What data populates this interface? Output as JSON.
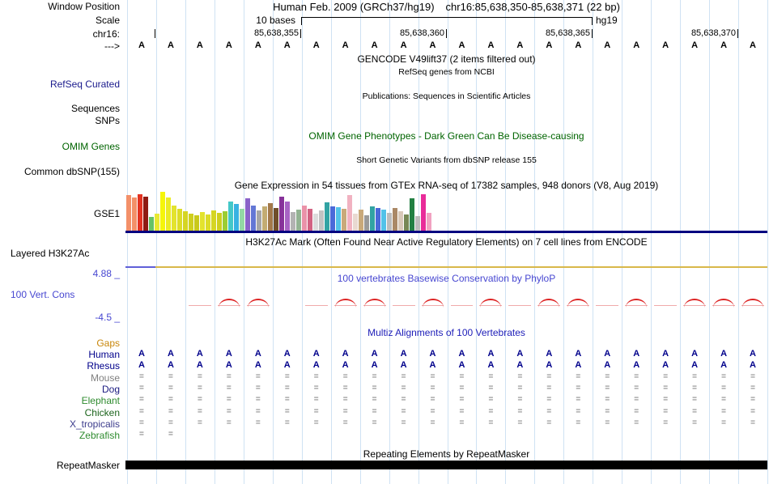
{
  "window": {
    "title_assembly": "Human Feb. 2009 (GRCh37/hg19)",
    "title_position": "chr16:85,638,350-85,638,371 (22 bp)"
  },
  "labels": {
    "window_position": "Window Position",
    "scale": "Scale",
    "chrom": "chr16:",
    "strand": "--->",
    "refseq_curated": "RefSeq Curated",
    "sequences": "Sequences",
    "snps": "SNPs",
    "omim_genes": "OMIM Genes",
    "common_dbsnp": "Common dbSNP(155)",
    "gtex_gene": "GSE1",
    "layered_h3k27ac": "Layered H3K27Ac",
    "cons_max": "4.88 _",
    "cons_track": "100 Vert. Cons",
    "cons_min": "-4.5 _",
    "gaps": "Gaps",
    "repeatmasker": "RepeatMasker"
  },
  "scale": {
    "value": "10 bases",
    "genome": "hg19"
  },
  "ruler": {
    "ticks": [
      "85,638,355",
      "85,638,360",
      "85,638,365",
      "85,638,370"
    ]
  },
  "titles": {
    "gencode": "GENCODE V49lift37 (2 items filtered out)",
    "refseq_sub": "RefSeq genes from NCBI",
    "publications": "Publications: Sequences in Scientific Articles",
    "omim": "OMIM Gene Phenotypes - Dark Green Can Be Disease-causing",
    "dbsnp": "Short Genetic Variants from dbSNP release 155",
    "gtex": "Gene Expression in 54 tissues from GTEx RNA-seq of 17382 samples, 948 donors (V8, Aug 2019)",
    "h3k27ac": "H3K27Ac Mark (Often Found Near Active Regulatory Elements) on 7 cell lines from ENCODE",
    "phylop": "100 vertebrates Basewise Conservation by PhyloP",
    "multiz": "Multiz Alignments of 100 Vertebrates",
    "repeatmasker": "Repeating Elements by RepeatMasker"
  },
  "sequence": "AAAAAAAAAAAAAAAAAAAAAA",
  "alignment": {
    "gap_color": "#909090",
    "base_color": "#00008b",
    "species": [
      {
        "name": "Human",
        "color": "#00008b",
        "row": "AAAAAAAAAAAAAAAAAAAAAA"
      },
      {
        "name": "Rhesus",
        "color": "#00008b",
        "row": "AAAAAAAAAAAAAAAAAAAAAA"
      },
      {
        "name": "Mouse",
        "color": "#808080",
        "row": "======================"
      },
      {
        "name": "Dog",
        "color": "#1a1a80",
        "row": "======================"
      },
      {
        "name": "Elephant",
        "color": "#2e8b2e",
        "row": "======================"
      },
      {
        "name": "Chicken",
        "color": "#1c641c",
        "row": "======================"
      },
      {
        "name": "X_tropicalis",
        "color": "#3c3c8c",
        "row": "======================"
      },
      {
        "name": "Zebrafish",
        "color": "#2e8b2e",
        "row": "=="
      }
    ]
  },
  "conservation": {
    "marks": [
      "none",
      "none",
      "dash",
      "arc",
      "arc",
      "none",
      "dash",
      "arc",
      "arc",
      "dash",
      "arc",
      "dash",
      "arc",
      "dash",
      "arc",
      "arc",
      "dash",
      "arc",
      "dash",
      "arc",
      "arc",
      "arc"
    ],
    "arc_color": "#dd2222",
    "dash_color": "#f0aaaa"
  },
  "chart_data": {
    "type": "bar",
    "title": "Gene Expression in 54 tissues from GTEx RNA-seq of 17382 samples, 948 donors (V8, Aug 2019)",
    "gene": "GSE1",
    "values": [
      44,
      41,
      45,
      42,
      17,
      21,
      48,
      41,
      31,
      27,
      24,
      21,
      19,
      23,
      20,
      25,
      22,
      24,
      36,
      33,
      27,
      40,
      31,
      25,
      30,
      34,
      28,
      42,
      36,
      23,
      26,
      31,
      27,
      21,
      25,
      35,
      30,
      29,
      27,
      44,
      21,
      26,
      19,
      30,
      28,
      26,
      22,
      28,
      24,
      20,
      40,
      18,
      45,
      22
    ],
    "colors": [
      "#f39069",
      "#f39069",
      "#e33322",
      "#8f1a12",
      "#66c266",
      "#e8e832",
      "#f5f50a",
      "#ebeb24",
      "#e3e32e",
      "#dcdc28",
      "#d5d522",
      "#cfcf1e",
      "#c9c91a",
      "#e3e32e",
      "#dcdc28",
      "#d5d522",
      "#cfcf1e",
      "#9ccd32",
      "#44c8c8",
      "#38b2e2",
      "#93d8a4",
      "#8a62c9",
      "#6377d5",
      "#a6a6a6",
      "#c3ac72",
      "#a3794a",
      "#6f4e2a",
      "#87329a",
      "#a763c4",
      "#b3b3b3",
      "#93b393",
      "#ea92a9",
      "#d26282",
      "#dcdcdc",
      "#c3c3c3",
      "#32a3a3",
      "#4a69d9",
      "#52c2e9",
      "#c9a97a",
      "#f1b2c1",
      "#e9d9d1",
      "#c9a97a",
      "#9a9a9a",
      "#32a3a3",
      "#4a69d9",
      "#52c2e9",
      "#bcbcbc",
      "#aa8866",
      "#d9c9b9",
      "#778855",
      "#228043",
      "#bcbcbc",
      "#e92b99",
      "#f1a2c1"
    ]
  },
  "colors": {
    "grid": "#cfe2f3",
    "gtex_baseline": "#000080",
    "h3k27ac_line": "#d9b84a",
    "h3k27ac_accent": "#5f5fd8",
    "repeat_bar": "#000000"
  }
}
